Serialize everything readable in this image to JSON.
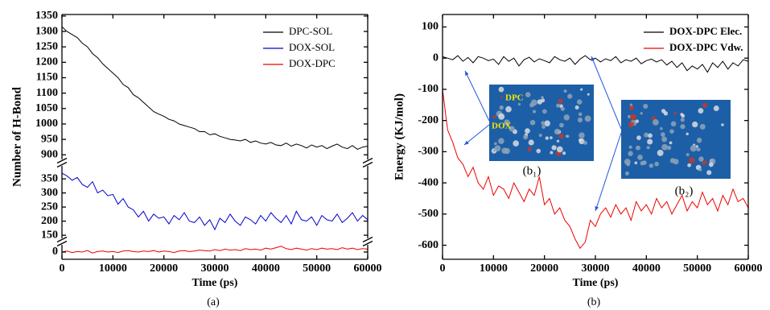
{
  "chart_data": [
    {
      "type": "line",
      "caption": "(a)",
      "x_label": "Time (ps)",
      "y_label": "Number of H-Bond",
      "x": [
        0,
        1000,
        2000,
        3000,
        4000,
        5000,
        6000,
        7000,
        8000,
        9000,
        10000,
        11000,
        12000,
        13000,
        14000,
        15000,
        16000,
        17000,
        18000,
        19000,
        20000,
        21000,
        22000,
        23000,
        24000,
        25000,
        26000,
        27000,
        28000,
        29000,
        30000,
        31000,
        32000,
        33000,
        34000,
        35000,
        36000,
        37000,
        38000,
        39000,
        40000,
        41000,
        42000,
        43000,
        44000,
        45000,
        46000,
        47000,
        48000,
        49000,
        50000,
        51000,
        52000,
        53000,
        54000,
        55000,
        56000,
        57000,
        58000,
        59000,
        60000
      ],
      "xlim": [
        0,
        60000
      ],
      "xticks": [
        0,
        10000,
        20000,
        30000,
        40000,
        50000,
        60000
      ],
      "y_segments": [
        {
          "ylim": [
            885,
            1355
          ],
          "yticks": [
            900,
            950,
            1000,
            1050,
            1100,
            1150,
            1200,
            1250,
            1300,
            1350
          ]
        },
        {
          "ylim": [
            139,
            396
          ],
          "yticks": [
            150,
            200,
            250,
            300,
            350
          ]
        },
        {
          "ylim": [
            -15,
            15
          ],
          "yticks": [
            0
          ]
        }
      ],
      "legend": "upper right",
      "series": [
        {
          "name": "DPC-SOL",
          "color": "#000000",
          "values": [
            1315,
            1300,
            1290,
            1280,
            1262,
            1250,
            1228,
            1215,
            1195,
            1180,
            1165,
            1150,
            1128,
            1118,
            1095,
            1085,
            1070,
            1055,
            1040,
            1032,
            1025,
            1015,
            1010,
            1000,
            995,
            990,
            985,
            975,
            975,
            965,
            968,
            960,
            955,
            950,
            948,
            945,
            950,
            940,
            945,
            938,
            935,
            940,
            932,
            930,
            938,
            928,
            935,
            930,
            922,
            932,
            925,
            930,
            920,
            928,
            935,
            925,
            920,
            930,
            918,
            925,
            928
          ]
        },
        {
          "name": "DOX-SOL",
          "color": "#0000cc",
          "values": [
            370,
            360,
            345,
            355,
            330,
            320,
            340,
            300,
            310,
            290,
            295,
            260,
            280,
            250,
            240,
            215,
            235,
            200,
            225,
            210,
            215,
            190,
            220,
            205,
            230,
            200,
            195,
            215,
            185,
            205,
            170,
            210,
            195,
            225,
            200,
            185,
            215,
            205,
            190,
            220,
            200,
            230,
            210,
            195,
            220,
            190,
            235,
            205,
            200,
            215,
            185,
            220,
            205,
            200,
            225,
            195,
            210,
            230,
            200,
            220,
            205
          ]
        },
        {
          "name": "DOX-DPC",
          "color": "#ee0000",
          "values": [
            0,
            2,
            -1,
            1,
            0,
            3,
            -2,
            1,
            2,
            0,
            1,
            -1,
            2,
            3,
            1,
            0,
            2,
            1,
            3,
            0,
            2,
            1,
            -1,
            2,
            3,
            1,
            2,
            4,
            3,
            2,
            5,
            3,
            6,
            4,
            5,
            3,
            7,
            5,
            6,
            4,
            8,
            6,
            9,
            12,
            7,
            5,
            8,
            6,
            4,
            7,
            5,
            8,
            6,
            7,
            5,
            9,
            6,
            8,
            5,
            7,
            6
          ]
        }
      ]
    },
    {
      "type": "line",
      "caption": "(b)",
      "x_label": "Time (ps)",
      "y_label": "Energy (KJ/mol)",
      "x": [
        0,
        1000,
        2000,
        3000,
        4000,
        5000,
        6000,
        7000,
        8000,
        9000,
        10000,
        11000,
        12000,
        13000,
        14000,
        15000,
        16000,
        17000,
        18000,
        19000,
        20000,
        21000,
        22000,
        23000,
        24000,
        25000,
        26000,
        27000,
        28000,
        29000,
        30000,
        31000,
        32000,
        33000,
        34000,
        35000,
        36000,
        37000,
        38000,
        39000,
        40000,
        41000,
        42000,
        43000,
        44000,
        45000,
        46000,
        47000,
        48000,
        49000,
        50000,
        51000,
        52000,
        53000,
        54000,
        55000,
        56000,
        57000,
        58000,
        59000,
        60000
      ],
      "xlim": [
        0,
        60000
      ],
      "xticks": [
        0,
        10000,
        20000,
        30000,
        40000,
        50000,
        60000
      ],
      "ylim": [
        -645,
        140
      ],
      "yticks": [
        -600,
        -500,
        -400,
        -300,
        -200,
        -100,
        0,
        100
      ],
      "legend": "upper right",
      "annotations": [
        "DPC",
        "DOX",
        "(b₁)",
        "(b₂)"
      ],
      "series": [
        {
          "name": "DOX-DPC Elec.",
          "color": "#000000",
          "values": [
            5,
            0,
            -5,
            8,
            -10,
            2,
            -15,
            5,
            0,
            -8,
            -3,
            -20,
            5,
            -10,
            0,
            -25,
            -5,
            3,
            -12,
            -2,
            -8,
            -15,
            5,
            -5,
            -10,
            0,
            -20,
            -3,
            8,
            -5,
            0,
            -12,
            -2,
            -8,
            5,
            -15,
            -5,
            -10,
            0,
            -18,
            -8,
            -3,
            -12,
            -5,
            -22,
            -10,
            -30,
            -15,
            -40,
            -25,
            -35,
            -20,
            -45,
            -15,
            -30,
            -10,
            -35,
            -15,
            -25,
            -5,
            -10
          ]
        },
        {
          "name": "DOX-DPC Vdw.",
          "color": "#ee0000",
          "values": [
            -100,
            -230,
            -270,
            -320,
            -340,
            -380,
            -350,
            -400,
            -420,
            -380,
            -440,
            -410,
            -420,
            -450,
            -400,
            -430,
            -460,
            -420,
            -440,
            -380,
            -470,
            -450,
            -500,
            -480,
            -520,
            -540,
            -580,
            -610,
            -590,
            -520,
            -540,
            -500,
            -480,
            -510,
            -470,
            -500,
            -480,
            -520,
            -460,
            -490,
            -470,
            -500,
            -450,
            -480,
            -460,
            -500,
            -470,
            -440,
            -490,
            -460,
            -480,
            -430,
            -470,
            -450,
            -490,
            -440,
            -470,
            -420,
            -460,
            -450,
            -480
          ]
        }
      ]
    }
  ]
}
